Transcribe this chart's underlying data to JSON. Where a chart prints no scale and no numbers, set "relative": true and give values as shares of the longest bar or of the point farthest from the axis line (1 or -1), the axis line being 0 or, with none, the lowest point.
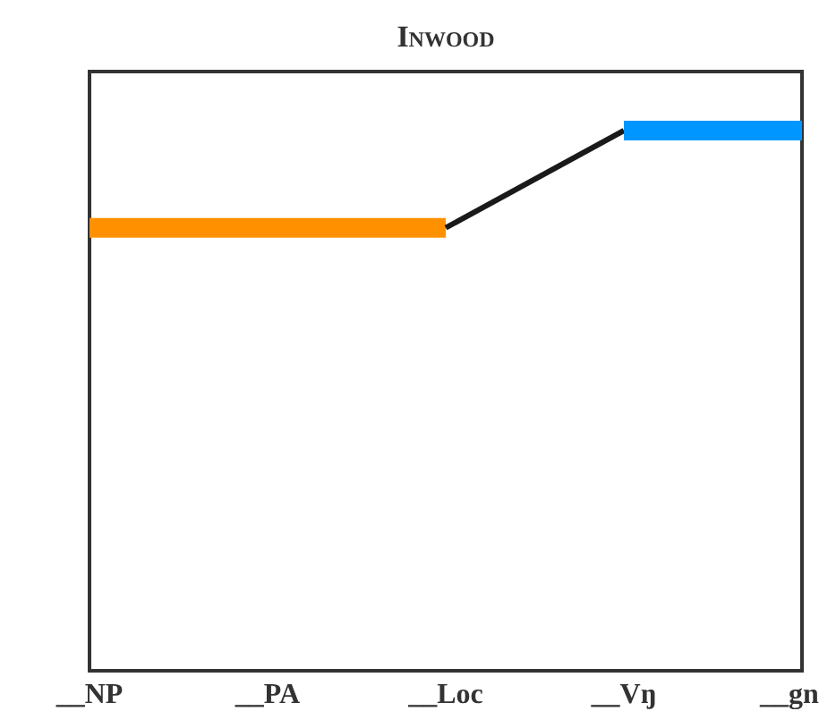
{
  "chart_data": {
    "type": "line",
    "title": "Inwood",
    "relative": true,
    "categories": [
      "__NP",
      "__PA",
      "__Loc",
      "__Vŋ",
      "__gn"
    ],
    "series": [
      {
        "type": "step",
        "color": "#ff9100",
        "values": [
          0.82,
          0.82,
          0.82,
          null,
          null
        ]
      },
      {
        "color": "#1a1a1a",
        "values": [
          null,
          null,
          0.82,
          1,
          null
        ]
      },
      {
        "type": "step",
        "color": "#0096ff",
        "values": [
          null,
          null,
          null,
          1,
          1
        ]
      }
    ]
  }
}
